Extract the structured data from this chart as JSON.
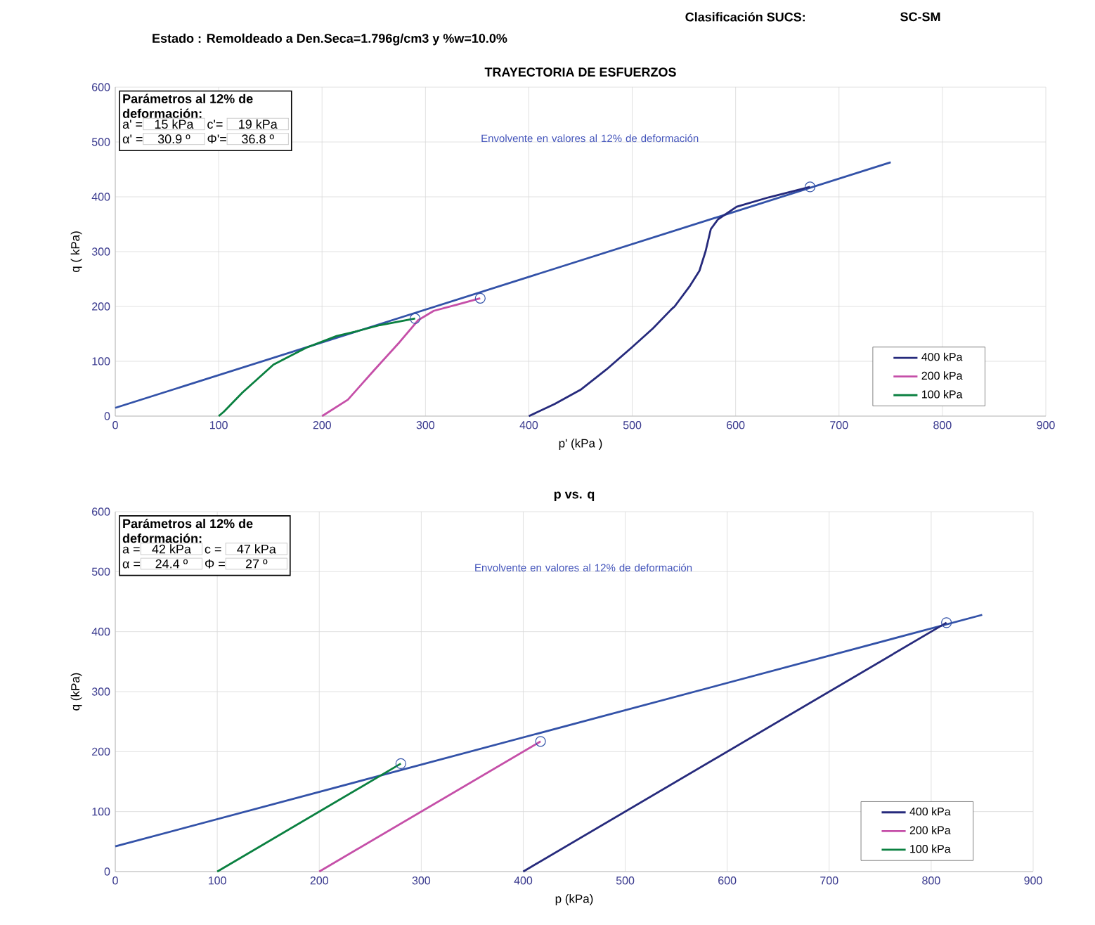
{
  "chart_data": [
    {
      "type": "line",
      "title": "TRAYECTORIA DE ESFUERZOS",
      "xlabel": "p' (kPa )",
      "ylabel": "q ( kPa)",
      "xlim": [
        0,
        900
      ],
      "ylim": [
        0,
        600
      ],
      "xticks": [
        0,
        100,
        200,
        300,
        400,
        500,
        600,
        700,
        800,
        900
      ],
      "yticks": [
        0,
        100,
        200,
        300,
        400,
        500,
        600
      ],
      "grid": true,
      "legend": "bottom right",
      "series": [
        {
          "color": "#3352a8",
          "x": [
            0,
            750
          ],
          "values": [
            15,
            463
          ]
        },
        {
          "name": "400 kPa",
          "color": "#262a7c",
          "x": [
            400,
            425,
            450,
            475,
            500,
            520,
            538,
            541,
            556,
            565,
            571,
            574,
            576,
            583,
            601,
            632,
            672
          ],
          "values": [
            0,
            22,
            48,
            85,
            126,
            160,
            195,
            200,
            238,
            265,
            301,
            325,
            341,
            359,
            382,
            399,
            418
          ]
        },
        {
          "name": "200 kPa",
          "color": "#c54fa8",
          "x": [
            200,
            225,
            250,
            275,
            293,
            308,
            330,
            353
          ],
          "values": [
            0,
            30,
            83,
            135,
            175,
            192,
            203,
            215
          ]
        },
        {
          "name": "100 kPa",
          "color": "#0a8040",
          "x": [
            100,
            105,
            123,
            153,
            185,
            214,
            232,
            256,
            290
          ],
          "values": [
            0,
            8,
            43,
            94,
            125,
            146,
            154,
            166,
            178
          ]
        },
        {
          "type": "scatter",
          "marker": "circle",
          "color": "#3352a8",
          "x": [
            290,
            353,
            672
          ],
          "values": [
            178,
            215,
            418
          ]
        }
      ],
      "annotations": [
        "Clasificación SUCS:",
        "SC-SM",
        "Estado :  Remoldeado a Den.Seca=1.796g/cm3 y %w=10.0%",
        "Parámetros al 12% de deformación:",
        "a' =",
        "15 kPa",
        "c'=",
        "19 kPa",
        "α' =",
        "30.9 º",
        "Φ'=",
        "36.8 º",
        "Envolvente en valores al 12% de deformación"
      ]
    },
    {
      "type": "line",
      "title": "p vs. q",
      "xlabel": "p (kPa)",
      "ylabel": "q (kPa)",
      "xlim": [
        0,
        900
      ],
      "ylim": [
        0,
        600
      ],
      "xticks": [
        0,
        100,
        200,
        300,
        400,
        500,
        600,
        700,
        800,
        900
      ],
      "yticks": [
        0,
        100,
        200,
        300,
        400,
        500,
        600
      ],
      "grid": true,
      "legend": "bottom right",
      "series": [
        {
          "color": "#3352a8",
          "x": [
            0,
            850
          ],
          "values": [
            42,
            428
          ]
        },
        {
          "name": "400 kPa",
          "color": "#262a7c",
          "x": [
            400,
            815
          ],
          "values": [
            0,
            415
          ]
        },
        {
          "name": "200 kPa",
          "color": "#c54fa8",
          "x": [
            200,
            417
          ],
          "values": [
            0,
            217
          ]
        },
        {
          "name": "100 kPa",
          "color": "#0a8040",
          "x": [
            100,
            280
          ],
          "values": [
            0,
            180
          ]
        },
        {
          "type": "scatter",
          "marker": "circle",
          "color": "#3352a8",
          "x": [
            280,
            417,
            815
          ],
          "values": [
            180,
            217,
            415
          ]
        }
      ],
      "annotations": [
        "Parámetros al 12% de deformación:",
        "a =",
        "42 kPa",
        "c =",
        "47 kPa",
        "α =",
        "24.4 º",
        "Φ =",
        "27 º",
        "Envolvente en valores al 12% de deformación"
      ]
    }
  ]
}
